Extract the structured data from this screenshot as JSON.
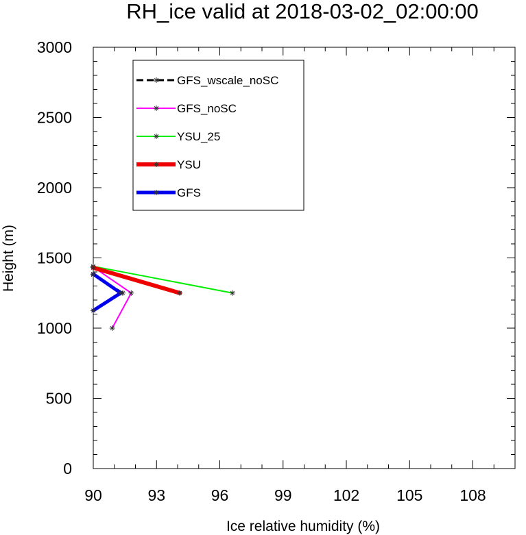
{
  "chart_data": {
    "type": "line",
    "title": "RH_ice valid at 2018-03-02_02:00:00",
    "xlabel": "Ice relative humidity (%)",
    "ylabel": "Height (m)",
    "xlim": [
      90,
      110
    ],
    "ylim": [
      0,
      3000
    ],
    "xticks": [
      90,
      93,
      96,
      99,
      102,
      105,
      108
    ],
    "yticks": [
      0,
      500,
      1000,
      1500,
      2000,
      2500,
      3000
    ],
    "legend_position": "top-left",
    "series": [
      {
        "name": "GFS_wscale_noSC",
        "color": "#000000",
        "dash": true,
        "width": 3,
        "x": [
          91.4,
          90.0
        ],
        "y": [
          1250,
          1380
        ]
      },
      {
        "name": "GFS_noSC",
        "color": "#ff00ff",
        "dash": false,
        "width": 2,
        "x": [
          90.9,
          91.8,
          90.0
        ],
        "y": [
          1000,
          1250,
          1435
        ]
      },
      {
        "name": "YSU_25",
        "color": "#00ee00",
        "dash": false,
        "width": 2,
        "x": [
          96.6,
          90.0
        ],
        "y": [
          1250,
          1440
        ]
      },
      {
        "name": "YSU",
        "color": "#ee0000",
        "dash": false,
        "width": 6,
        "x": [
          94.1,
          90.0
        ],
        "y": [
          1250,
          1430
        ]
      },
      {
        "name": "GFS",
        "color": "#0000ee",
        "dash": false,
        "width": 5,
        "x": [
          90.0,
          91.3,
          90.0
        ],
        "y": [
          1125,
          1250,
          1385
        ]
      }
    ]
  }
}
